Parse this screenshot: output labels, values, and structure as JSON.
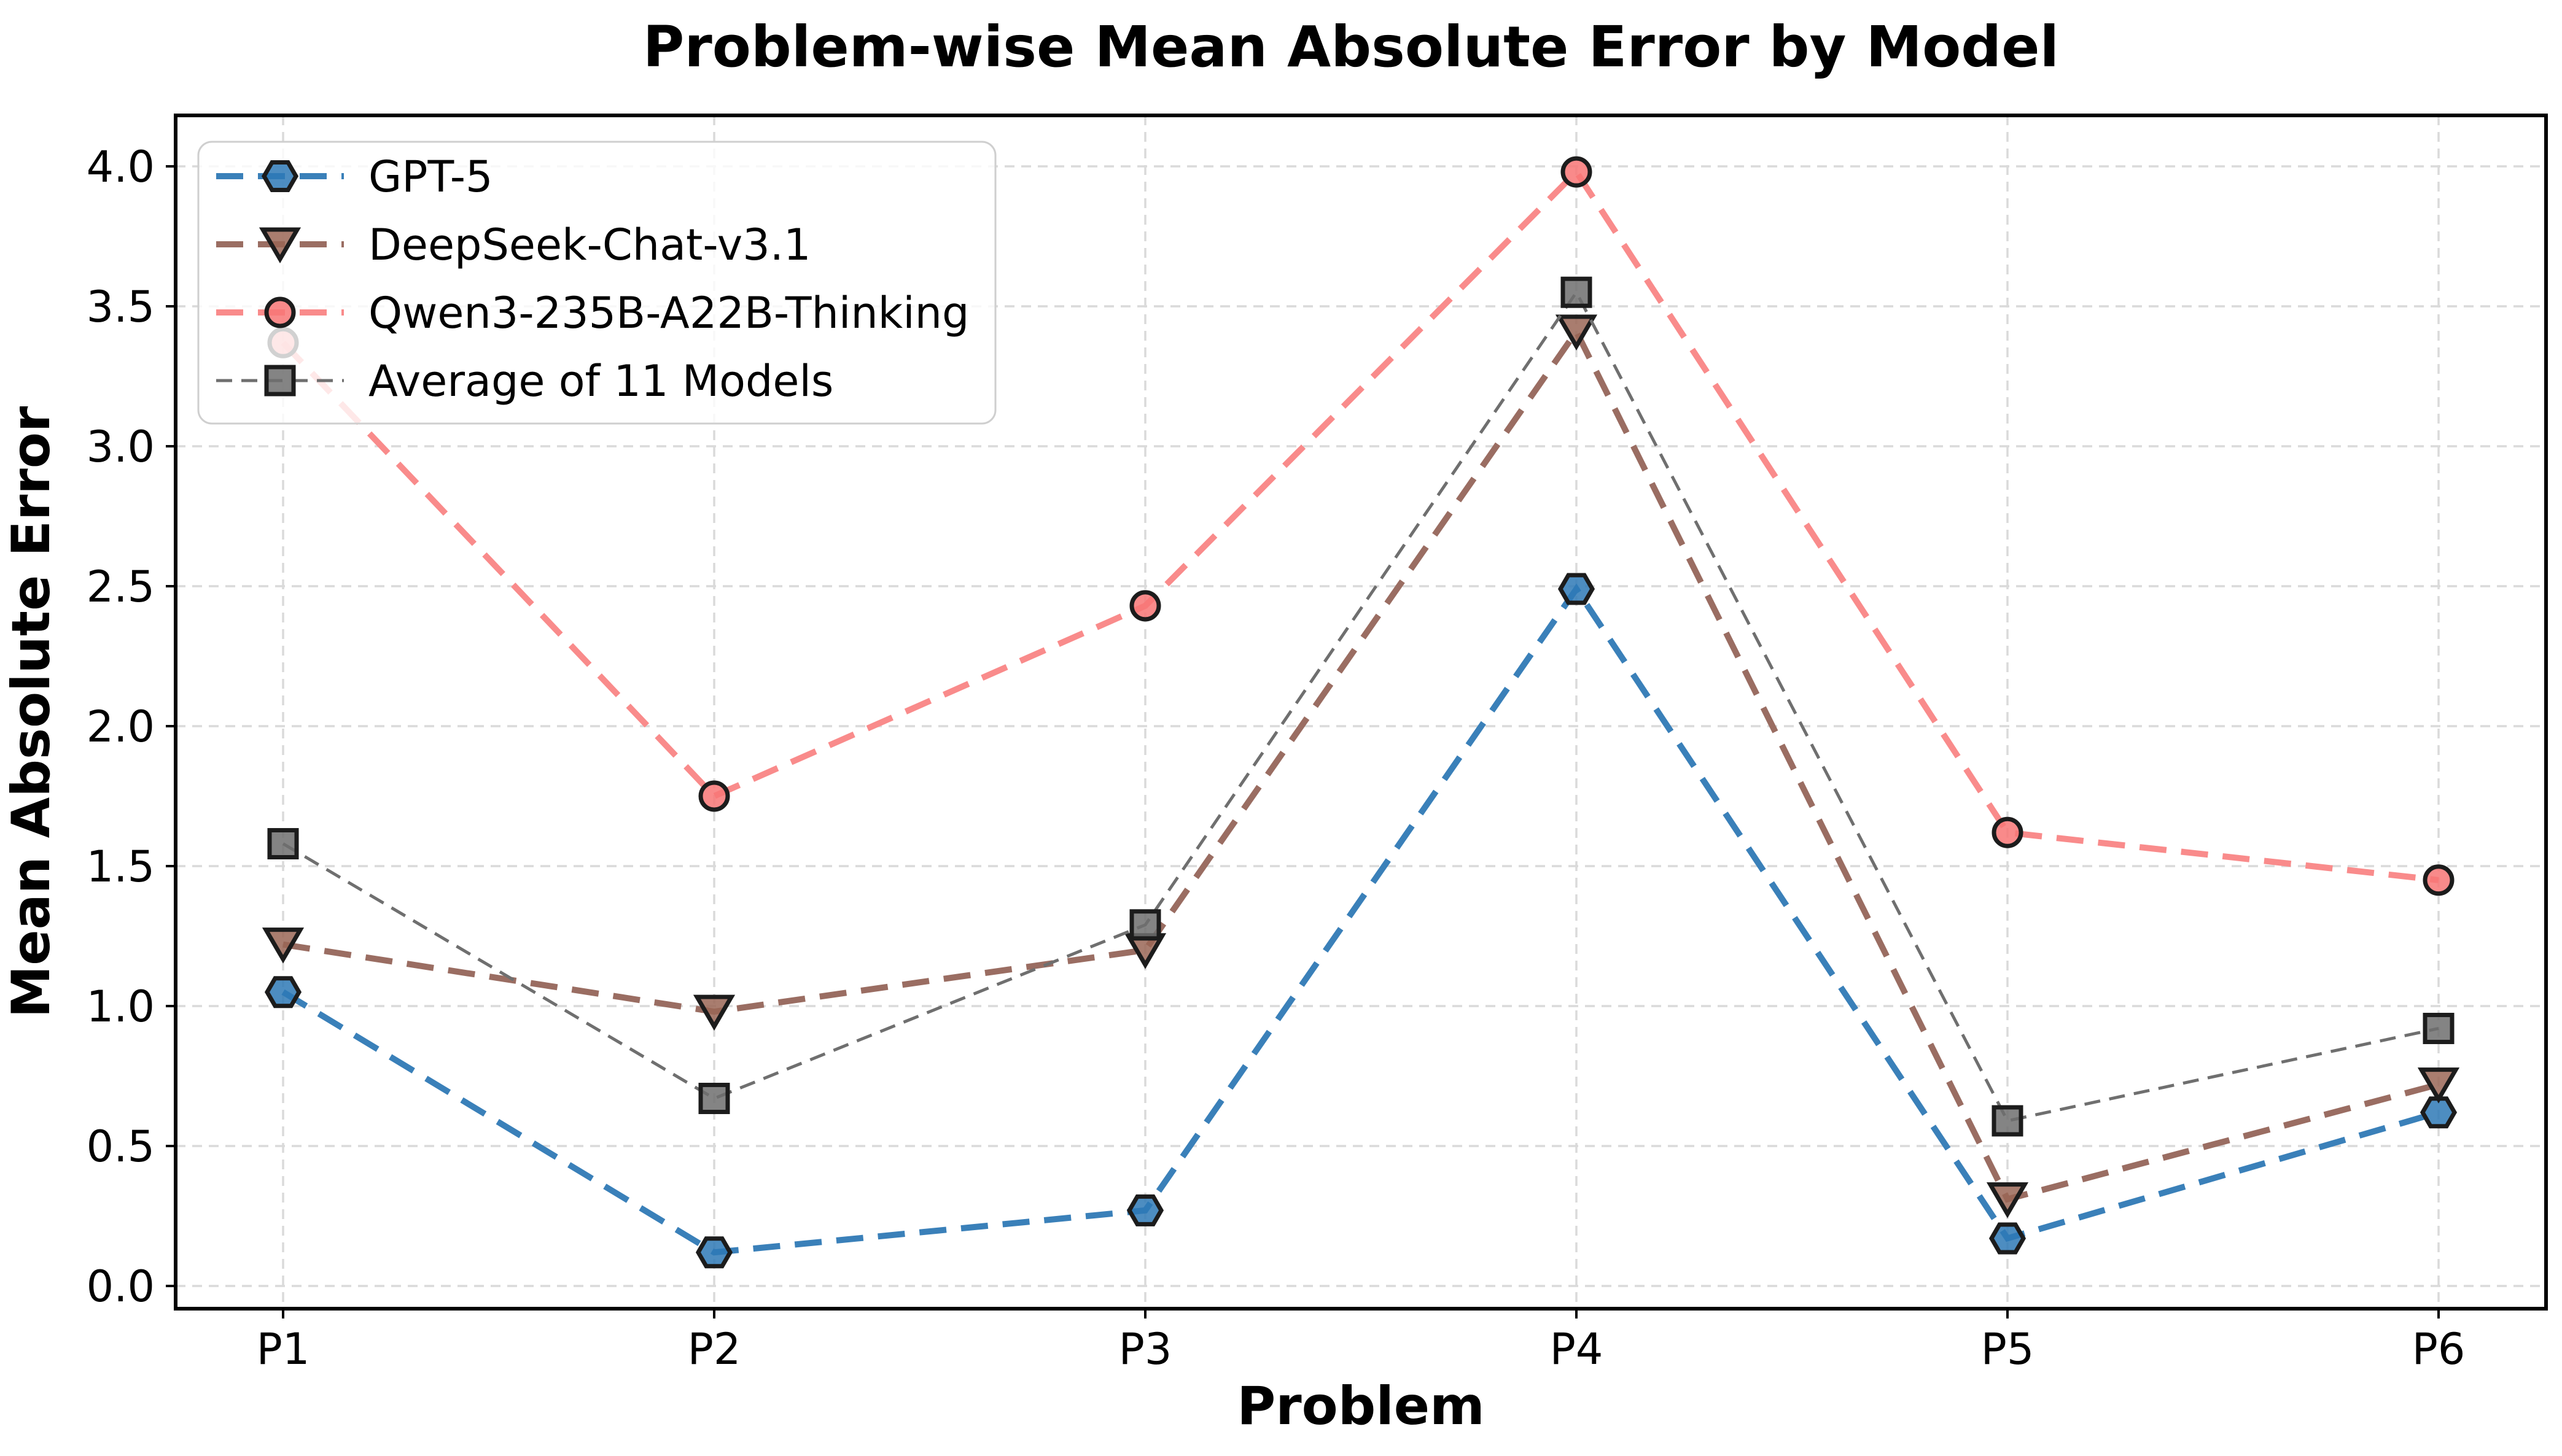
{
  "figure": {
    "background": "#ffffff",
    "plot_background": "#ffffff",
    "spine_color": "#000000",
    "grid_color": "#dadada",
    "tick_color": "#000000"
  },
  "chart_data": {
    "type": "line",
    "title": "Problem-wise Mean Absolute Error by Model",
    "xlabel": "Problem",
    "ylabel": "Mean Absolute Error",
    "categories": [
      "P1",
      "P2",
      "P3",
      "P4",
      "P5",
      "P6"
    ],
    "yticks": [
      0.0,
      0.5,
      1.0,
      1.5,
      2.0,
      2.5,
      3.0,
      3.5,
      4.0
    ],
    "ytick_labels": [
      "0.0",
      "0.5",
      "1.0",
      "1.5",
      "2.0",
      "2.5",
      "3.0",
      "3.5",
      "4.0"
    ],
    "ylim": [
      -0.08,
      4.18
    ],
    "grid": true,
    "marker_edge_color": "#1c1c1c",
    "legend": {
      "position": "upper left",
      "border_color": "#cfcfcf",
      "background_alpha": 0.8
    },
    "series": [
      {
        "name": "GPT-5",
        "marker": "hexagon",
        "line_color": "#3a80b9",
        "marker_color": "#2e79b6",
        "line_width": 10,
        "dash": "long",
        "values": [
          1.05,
          0.12,
          0.27,
          2.49,
          0.17,
          0.62
        ]
      },
      {
        "name": "DeepSeek-Chat-v3.1",
        "marker": "triangle-down",
        "line_color": "#9a6d62",
        "marker_color": "#9a6656",
        "line_width": 10,
        "dash": "long",
        "values": [
          1.22,
          0.98,
          1.2,
          3.41,
          0.31,
          0.72
        ]
      },
      {
        "name": "Qwen3-235B-A22B-Thinking",
        "marker": "circle",
        "line_color": "#f98b8b",
        "marker_color": "#f87676",
        "line_width": 10,
        "dash": "long",
        "values": [
          3.37,
          1.75,
          2.43,
          3.98,
          1.62,
          1.45
        ]
      },
      {
        "name": "Average of 11 Models",
        "marker": "square",
        "line_color": "#6f6f6f",
        "marker_color": "#6e6e6e",
        "line_width": 5,
        "dash": "short",
        "values": [
          1.58,
          0.67,
          1.29,
          3.55,
          0.59,
          0.92
        ]
      }
    ]
  }
}
